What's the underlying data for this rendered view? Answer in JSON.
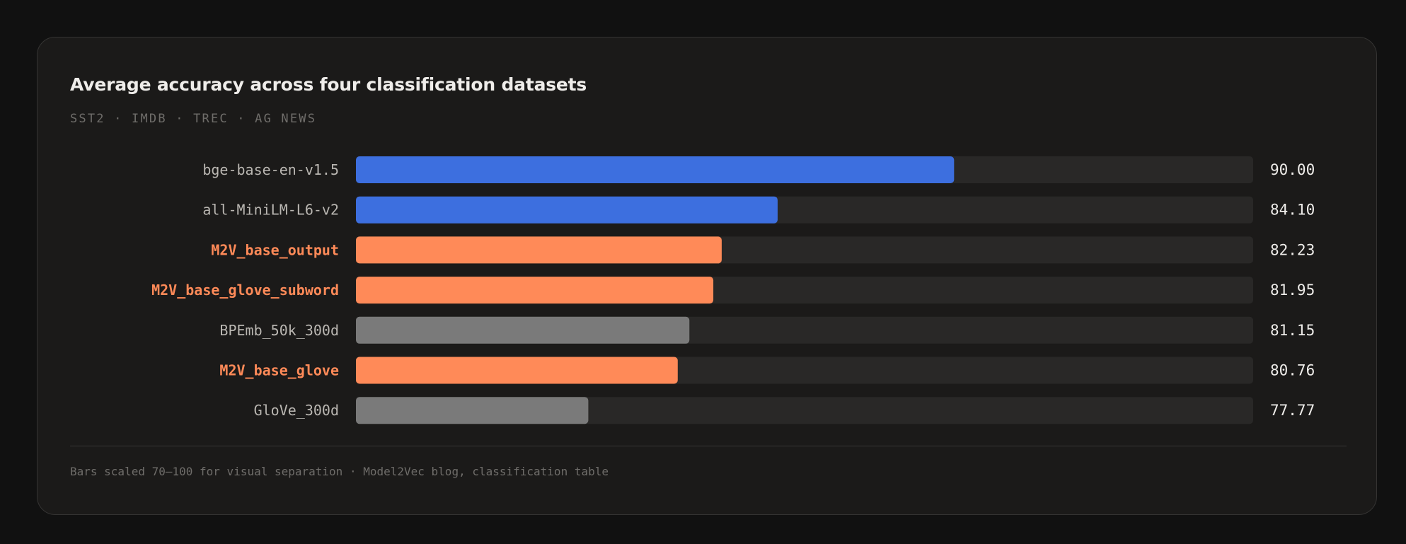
{
  "chart_data": {
    "type": "bar",
    "orientation": "horizontal",
    "title": "Average accuracy across four classification datasets",
    "subtitle": "SST2 · IMDB · TREC · AG NEWS",
    "categories": [
      "bge-base-en-v1.5",
      "all-MiniLM-L6-v2",
      "M2V_base_output",
      "M2V_base_glove_subword",
      "BPEmb_50k_300d",
      "M2V_base_glove",
      "GloVe_300d"
    ],
    "values": [
      90.0,
      84.1,
      82.23,
      81.95,
      81.15,
      80.76,
      77.77
    ],
    "value_labels": [
      "90.00",
      "84.10",
      "82.23",
      "81.95",
      "81.15",
      "80.76",
      "77.77"
    ],
    "groups": [
      "transformer",
      "transformer",
      "m2v",
      "m2v",
      "static",
      "m2v",
      "static"
    ],
    "xlim": [
      70,
      100
    ],
    "grid": false,
    "legend": "none",
    "footnote": "Bars scaled 70–100 for visual separation · Model2Vec blog, classification table"
  },
  "colors": {
    "transformer": "#3d6fdf",
    "m2v": "#ff8a58",
    "static": "#7a7a7a",
    "track": "#292827",
    "label_default": "#bab7b2",
    "label_highlight": "#ff8a58",
    "value_text": "#efedea"
  }
}
